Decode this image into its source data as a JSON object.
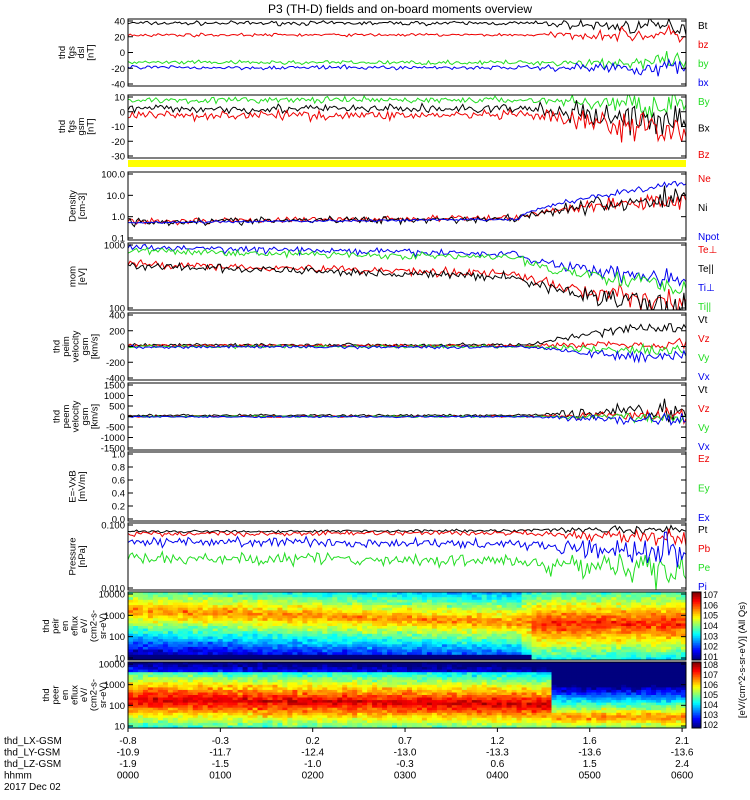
{
  "title": "P3 (TH-D) fields and on-board moments overview",
  "colors": {
    "black": "#000000",
    "red": "#ee0000",
    "green": "#22dd22",
    "blue": "#0000ee",
    "yellow": "#ffff00"
  },
  "x_axis": {
    "row_labels": [
      "thd_LX-GSM",
      "thd_LY-GSM",
      "thd_LZ-GSM",
      "hhmm",
      "2017 Dec 02"
    ],
    "columns": [
      [
        "-0.8",
        "-10.9",
        "-1.9",
        "0000"
      ],
      [
        "-0.3",
        "-11.7",
        "-1.5",
        "0100"
      ],
      [
        "0.2",
        "-12.4",
        "-1.0",
        "0200"
      ],
      [
        "0.7",
        "-13.0",
        "-0.3",
        "0300"
      ],
      [
        "1.2",
        "-13.3",
        "0.6",
        "0400"
      ],
      [
        "1.6",
        "-13.6",
        "1.5",
        "0500"
      ],
      [
        "2.1",
        "-13.6",
        "2.4",
        "0600"
      ]
    ]
  },
  "chart_data": [
    {
      "id": "fgs_dsl",
      "type": "line",
      "ylabel": [
        "thd",
        "fgs",
        "dsl",
        "[nT]"
      ],
      "ylim": [
        -40,
        40
      ],
      "yticks": [
        "40",
        "20",
        "0",
        "-20",
        "-40"
      ],
      "series": [
        {
          "name": "Bt",
          "color": "black",
          "base": 35,
          "noise": 2,
          "late_noise": 8,
          "late_drift": -4
        },
        {
          "name": "bz",
          "color": "red",
          "base": 21,
          "noise": 1.5,
          "late_noise": 8,
          "late_drift": 0
        },
        {
          "name": "by",
          "color": "green",
          "base": -12,
          "noise": 2,
          "late_noise": 8,
          "late_drift": 0
        },
        {
          "name": "bx",
          "color": "blue",
          "base": -18,
          "noise": 2,
          "late_noise": 8,
          "late_drift": 0
        }
      ]
    },
    {
      "id": "fgs_gsm",
      "type": "line",
      "ylabel": [
        "thd",
        "fgs",
        "gsm",
        "[nT]"
      ],
      "ylim": [
        -35,
        15
      ],
      "yticks": [
        "10",
        "0",
        "-10",
        "-20",
        "-30"
      ],
      "series": [
        {
          "name": "By",
          "color": "green",
          "base": 11,
          "noise": 2,
          "late_noise": 9,
          "late_drift": -3
        },
        {
          "name": "Bx",
          "color": "black",
          "base": 4,
          "noise": 3,
          "late_noise": 12,
          "late_drift": -8
        },
        {
          "name": "Bz",
          "color": "red",
          "base": -1,
          "noise": 3,
          "late_noise": 12,
          "late_drift": -10
        }
      ]
    },
    {
      "id": "density",
      "type": "line",
      "log": true,
      "ylabel": [
        "Density",
        "[cm-3]"
      ],
      "ylim": [
        0.1,
        200
      ],
      "yticks": [
        "100.0",
        "10.0",
        "1.0",
        "0.1"
      ],
      "series": [
        {
          "name": "Ne",
          "color": "red",
          "start": 0.8,
          "mid": 1.2,
          "end": 10,
          "noise": 0.12
        },
        {
          "name": "Ni",
          "color": "black",
          "start": 0.75,
          "mid": 1.1,
          "end": 11,
          "noise": 0.15
        },
        {
          "name": "Npot",
          "color": "blue",
          "start": 0.7,
          "mid": 1.0,
          "end": 60,
          "noise": 0.05
        }
      ]
    },
    {
      "id": "temperature",
      "type": "line",
      "log": true,
      "ylabel": [
        "mom",
        "[eV]"
      ],
      "ylim": [
        20,
        5000
      ],
      "yticks": [
        "1000",
        "100"
      ],
      "series": [
        {
          "name": "Te⊥",
          "color": "red",
          "start": 900,
          "mid": 400,
          "end": 35,
          "noise": 0.12
        },
        {
          "name": "Te||",
          "color": "black",
          "start": 750,
          "mid": 300,
          "end": 25,
          "noise": 0.12
        },
        {
          "name": "Ti⊥",
          "color": "blue",
          "start": 3500,
          "mid": 2000,
          "end": 250,
          "noise": 0.1
        },
        {
          "name": "Ti||",
          "color": "green",
          "start": 2600,
          "mid": 1500,
          "end": 150,
          "noise": 0.1
        }
      ]
    },
    {
      "id": "peim_velocity",
      "type": "line",
      "ylabel": [
        "thd",
        "peim",
        "velocity",
        "gsm",
        "[km/s]"
      ],
      "ylim": [
        -400,
        400
      ],
      "yticks": [
        "400",
        "200",
        "0",
        "-200",
        "-400"
      ],
      "series": [
        {
          "name": "Vt",
          "color": "black",
          "base": 20,
          "noise": 15,
          "late_noise": 60,
          "late_drift": 200
        },
        {
          "name": "Vz",
          "color": "red",
          "base": 10,
          "noise": 15,
          "late_noise": 50,
          "late_drift": 20
        },
        {
          "name": "Vy",
          "color": "green",
          "base": 0,
          "noise": 15,
          "late_noise": 50,
          "late_drift": -50
        },
        {
          "name": "Vx",
          "color": "blue",
          "base": -5,
          "noise": 15,
          "late_noise": 50,
          "late_drift": -120
        }
      ]
    },
    {
      "id": "peem_velocity",
      "type": "line",
      "ylabel": [
        "thd",
        "peem",
        "velocity",
        "gsm",
        "[km/s]"
      ],
      "ylim": [
        -1500,
        1500
      ],
      "yticks": [
        "1500",
        "1000",
        "500",
        "0",
        "-500",
        "-1000",
        "-1500"
      ],
      "series": [
        {
          "name": "Vt",
          "color": "black",
          "base": 50,
          "noise": 40,
          "late_noise": 400,
          "late_drift": 200
        },
        {
          "name": "Vz",
          "color": "red",
          "base": 0,
          "noise": 30,
          "late_noise": 250,
          "late_drift": 50
        },
        {
          "name": "Vy",
          "color": "green",
          "base": 0,
          "noise": 30,
          "late_noise": 250,
          "late_drift": -50
        },
        {
          "name": "Vx",
          "color": "blue",
          "base": -10,
          "noise": 30,
          "late_noise": 300,
          "late_drift": -150
        }
      ]
    },
    {
      "id": "efield",
      "type": "line",
      "ylabel": [
        "E=-VxB",
        "[mV/m]"
      ],
      "ylim": [
        0,
        1
      ],
      "yticks": [
        "1.0",
        "0.8",
        "0.6",
        "0.4",
        "0.2",
        "0.0"
      ],
      "series": [
        {
          "name": "Ez",
          "color": "red"
        },
        {
          "name": "Ey",
          "color": "green"
        },
        {
          "name": "Ex",
          "color": "blue"
        }
      ]
    },
    {
      "id": "pressure",
      "type": "line",
      "log": true,
      "ylabel": [
        "Pressure",
        "[nPa]"
      ],
      "ylim": [
        0.002,
        1.0
      ],
      "yticks": [
        "0.100",
        "0.010"
      ],
      "series": [
        {
          "name": "Pt",
          "color": "black",
          "start": 0.45,
          "mid": 0.5,
          "end": 0.55,
          "noise": 0.05
        },
        {
          "name": "Pb",
          "color": "red",
          "start": 0.36,
          "mid": 0.4,
          "end": 0.25,
          "noise": 0.08
        },
        {
          "name": "Pe",
          "color": "green",
          "start": 0.04,
          "mid": 0.03,
          "end": 0.012,
          "noise": 0.2
        },
        {
          "name": "Pi",
          "color": "blue",
          "start": 0.18,
          "mid": 0.15,
          "end": 0.08,
          "noise": 0.15
        }
      ]
    },
    {
      "id": "peir_eflux",
      "type": "heatmap",
      "ylabel": [
        "thd",
        "peir",
        "en",
        "eflux",
        "eV/",
        "(cm^2-s-",
        "sr-eV)"
      ],
      "ylim": [
        5,
        25000
      ],
      "yticks": [
        "10000",
        "1000",
        "100",
        "10"
      ],
      "species": "ion",
      "colorbar": {
        "ticks": [
          "10^7",
          "10^6",
          "10^5",
          "10^4",
          "10^3",
          "10^2",
          "10^1"
        ],
        "label": "[eV/(cm^2-s-sr-eV)] (All Qs)"
      }
    },
    {
      "id": "peer_eflux",
      "type": "heatmap",
      "ylabel": [
        "thd",
        "peer",
        "en",
        "eflux",
        "eV/",
        "(cm^2-s-",
        "sr-eV)"
      ],
      "ylim": [
        5,
        30000
      ],
      "yticks": [
        "10000",
        "1000",
        "100",
        "10"
      ],
      "species": "electron",
      "colorbar": {
        "ticks": [
          "10^8",
          "10^7",
          "10^6",
          "10^5",
          "10^4",
          "10^3",
          "10^2"
        ],
        "label": "[eV/(cm^2-s-sr-eV)] (All Qs)"
      }
    }
  ]
}
